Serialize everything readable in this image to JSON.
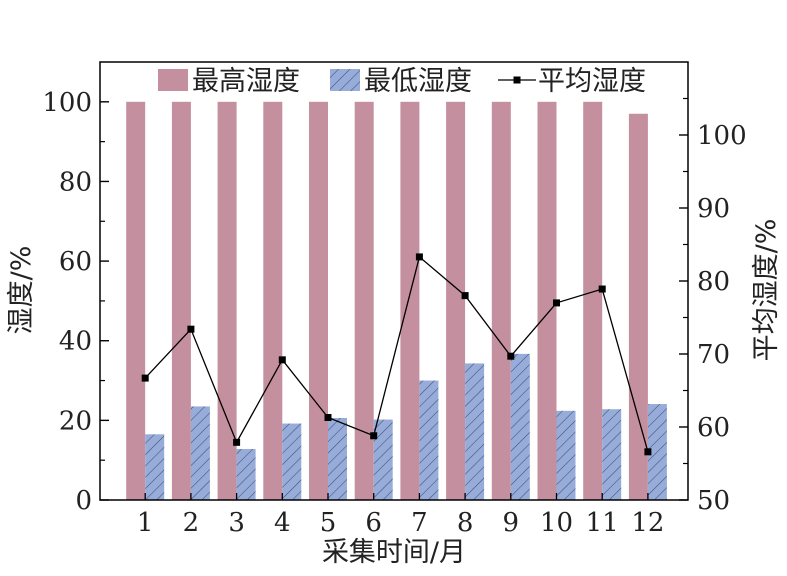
{
  "chart_data": {
    "type": "bar",
    "categories": [
      "1",
      "2",
      "3",
      "4",
      "5",
      "6",
      "7",
      "8",
      "9",
      "10",
      "11",
      "12"
    ],
    "xlabel": "采集时间/月",
    "ylabel": "湿度/%",
    "y2label": "平均湿度/%",
    "ylim": [
      0,
      110
    ],
    "y2lim": [
      50,
      110
    ],
    "yticks": [
      "0",
      "20",
      "40",
      "60",
      "80",
      "100"
    ],
    "y2ticks": [
      "50",
      "60",
      "70",
      "80",
      "90",
      "100"
    ],
    "legend_position": "top",
    "series": [
      {
        "name": "最高湿度",
        "type": "bar",
        "axis": "left",
        "color": "#c4909f",
        "values": [
          100,
          100,
          100,
          100,
          100,
          100,
          100,
          100,
          100,
          100,
          100,
          97
        ]
      },
      {
        "name": "最低湿度",
        "type": "bar",
        "axis": "left",
        "color": "#97acd8",
        "hatch": "diagonal",
        "values": [
          16.5,
          23.5,
          12.8,
          19.2,
          20.6,
          20.2,
          30,
          34.3,
          36.7,
          22.4,
          22.8,
          24.1
        ]
      },
      {
        "name": "平均湿度",
        "type": "line",
        "axis": "right",
        "color": "#000000",
        "marker": "square",
        "values": [
          66.7,
          73.4,
          57.9,
          69.2,
          61.3,
          58.8,
          83.3,
          78,
          69.7,
          77,
          78.9,
          56.6
        ]
      }
    ]
  }
}
